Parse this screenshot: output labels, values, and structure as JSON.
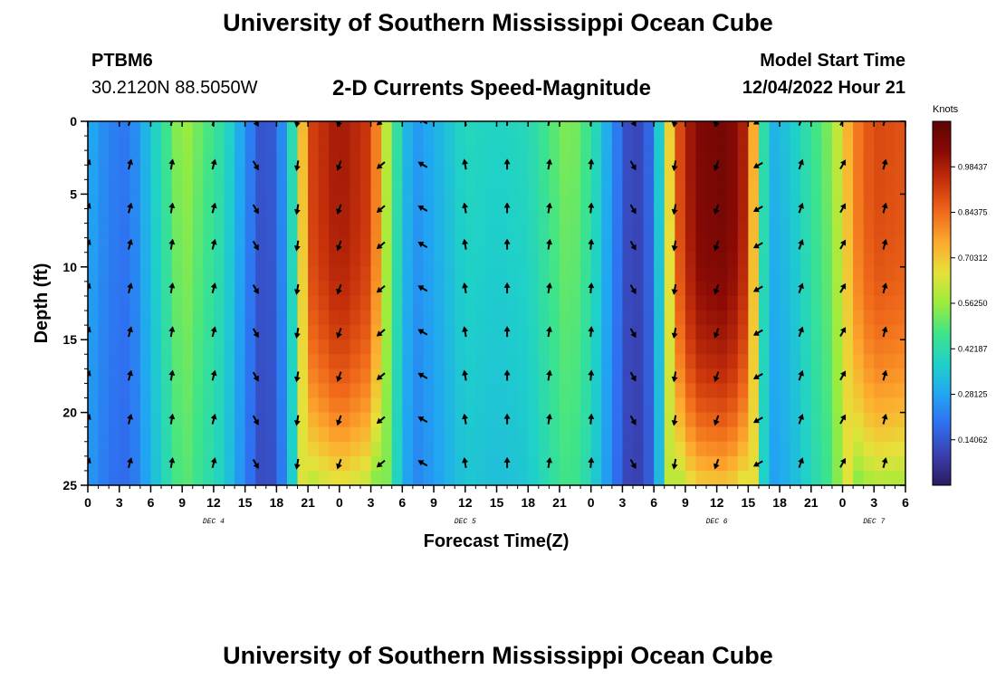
{
  "header": {
    "title": "University of Southern Mississippi Ocean Cube",
    "station_id": "PTBM6",
    "station_coords": "30.2120N  88.5050W",
    "plot_title": "2-D Currents Speed-Magnitude",
    "model_start_label": "Model Start Time",
    "model_start_value": "12/04/2022 Hour 21"
  },
  "footer": {
    "title": "University of Southern Mississippi Ocean Cube"
  },
  "chart_data": {
    "type": "heatmap",
    "title": "2-D Currents Speed-Magnitude",
    "xlabel": "Forecast Time(Z)",
    "ylabel": "Depth (ft)",
    "x_tick_labels": [
      "0",
      "3",
      "6",
      "9",
      "12",
      "15",
      "18",
      "21",
      "0",
      "3",
      "6",
      "9",
      "12",
      "15",
      "18",
      "21",
      "0",
      "3",
      "6",
      "9",
      "12",
      "15",
      "18",
      "21",
      "0",
      "3",
      "6"
    ],
    "x_range_hours": [
      0,
      78
    ],
    "day_labels": [
      {
        "label": "DEC 4",
        "hour": 12
      },
      {
        "label": "DEC 5",
        "hour": 36
      },
      {
        "label": "DEC 6",
        "hour": 60
      },
      {
        "label": "DEC 7",
        "hour": 75
      }
    ],
    "y_ticks": [
      0,
      5,
      10,
      15,
      20,
      25
    ],
    "ylim": [
      0,
      25
    ],
    "y_inverted": true,
    "colorbar": {
      "title": "Knots",
      "ticks": [
        "0.98437",
        "0.84375",
        "0.70312",
        "0.56250",
        "0.42187",
        "0.28125",
        "0.14062"
      ],
      "tick_values": [
        0.98437,
        0.84375,
        0.70312,
        0.5625,
        0.42187,
        0.28125,
        0.14062
      ],
      "range": [
        0.0,
        1.125
      ],
      "colors": [
        "#2b1b5e",
        "#3a3fae",
        "#2f6ff0",
        "#21a6f2",
        "#1fd1c8",
        "#3ee48a",
        "#9bec3c",
        "#e6e13a",
        "#fdaa2e",
        "#f06a1a",
        "#c8320b",
        "#8a0a05",
        "#5c0404"
      ]
    },
    "speed_profile_by_time": [
      {
        "hour": 0,
        "speed": 0.3
      },
      {
        "hour": 2,
        "speed": 0.22
      },
      {
        "hour": 4,
        "speed": 0.2
      },
      {
        "hour": 6,
        "speed": 0.35
      },
      {
        "hour": 8,
        "speed": 0.5
      },
      {
        "hour": 9,
        "speed": 0.58
      },
      {
        "hour": 11,
        "speed": 0.5
      },
      {
        "hour": 13,
        "speed": 0.42
      },
      {
        "hour": 15,
        "speed": 0.25
      },
      {
        "hour": 17,
        "speed": 0.1
      },
      {
        "hour": 19,
        "speed": 0.28
      },
      {
        "hour": 20,
        "speed": 0.55
      },
      {
        "hour": 21,
        "speed": 0.9
      },
      {
        "hour": 24,
        "speed": 1.0
      },
      {
        "hour": 27,
        "speed": 0.92
      },
      {
        "hour": 29,
        "speed": 0.5
      },
      {
        "hour": 31,
        "speed": 0.25
      },
      {
        "hour": 33,
        "speed": 0.3
      },
      {
        "hour": 36,
        "speed": 0.4
      },
      {
        "hour": 39,
        "speed": 0.38
      },
      {
        "hour": 42,
        "speed": 0.4
      },
      {
        "hour": 44,
        "speed": 0.48
      },
      {
        "hour": 46,
        "speed": 0.55
      },
      {
        "hour": 48,
        "speed": 0.45
      },
      {
        "hour": 50,
        "speed": 0.25
      },
      {
        "hour": 52,
        "speed": 0.08
      },
      {
        "hour": 54,
        "speed": 0.2
      },
      {
        "hour": 56,
        "speed": 0.85
      },
      {
        "hour": 58,
        "speed": 1.05
      },
      {
        "hour": 61,
        "speed": 1.08
      },
      {
        "hour": 63,
        "speed": 0.95
      },
      {
        "hour": 64,
        "speed": 0.55
      },
      {
        "hour": 65,
        "speed": 0.3
      },
      {
        "hour": 67,
        "speed": 0.35
      },
      {
        "hour": 69,
        "speed": 0.45
      },
      {
        "hour": 71,
        "speed": 0.55
      },
      {
        "hour": 73,
        "speed": 0.8
      },
      {
        "hour": 75,
        "speed": 0.9
      },
      {
        "hour": 78,
        "speed": 0.88
      }
    ],
    "arrow_columns": [
      {
        "hour": 0,
        "dir_deg": 20
      },
      {
        "hour": 4,
        "dir_deg": 15
      },
      {
        "hour": 8,
        "dir_deg": 10
      },
      {
        "hour": 12,
        "dir_deg": 15
      },
      {
        "hour": 16,
        "dir_deg": 150
      },
      {
        "hour": 20,
        "dir_deg": 190
      },
      {
        "hour": 24,
        "dir_deg": 200
      },
      {
        "hour": 28,
        "dir_deg": 230
      },
      {
        "hour": 32,
        "dir_deg": 300
      },
      {
        "hour": 36,
        "dir_deg": 350
      },
      {
        "hour": 40,
        "dir_deg": 0
      },
      {
        "hour": 44,
        "dir_deg": 10
      },
      {
        "hour": 48,
        "dir_deg": 5
      },
      {
        "hour": 52,
        "dir_deg": 150
      },
      {
        "hour": 56,
        "dir_deg": 190
      },
      {
        "hour": 60,
        "dir_deg": 200
      },
      {
        "hour": 64,
        "dir_deg": 240
      },
      {
        "hour": 68,
        "dir_deg": 20
      },
      {
        "hour": 72,
        "dir_deg": 30
      },
      {
        "hour": 76,
        "dir_deg": 15
      }
    ]
  }
}
